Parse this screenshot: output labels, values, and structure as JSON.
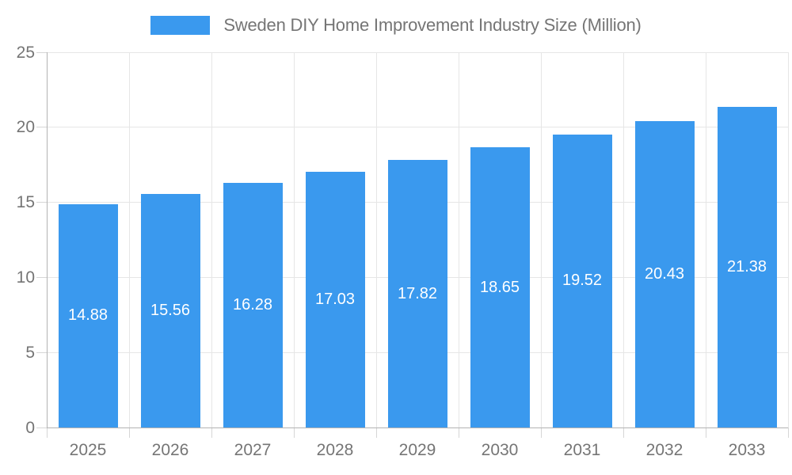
{
  "chart_data": {
    "type": "bar",
    "title": "Sweden DIY Home Improvement Industry Size (Million)",
    "categories": [
      "2025",
      "2026",
      "2027",
      "2028",
      "2029",
      "2030",
      "2031",
      "2032",
      "2033"
    ],
    "values": [
      14.88,
      15.56,
      16.28,
      17.03,
      17.82,
      18.65,
      19.52,
      20.43,
      21.38
    ],
    "value_labels": [
      "14.88",
      "15.56",
      "16.28",
      "17.03",
      "17.82",
      "18.65",
      "19.52",
      "20.43",
      "21.38"
    ],
    "xlabel": "",
    "ylabel": "",
    "ylim": [
      0,
      25
    ],
    "yticks": [
      0,
      5,
      10,
      15,
      20,
      25
    ],
    "grid": true,
    "legend_position": "top-center",
    "bar_labels_position": "centered-inside-bar",
    "colors": {
      "bar": "#3A99EE",
      "gridline": "#E6E6E6",
      "axis_line": "#B3B3B3",
      "tick_mark": "#D6D6D6",
      "axis_text": "#757575",
      "title_text": "#757575",
      "bar_label_text": "#FFFFFF",
      "background": "#FFFFFF"
    }
  }
}
